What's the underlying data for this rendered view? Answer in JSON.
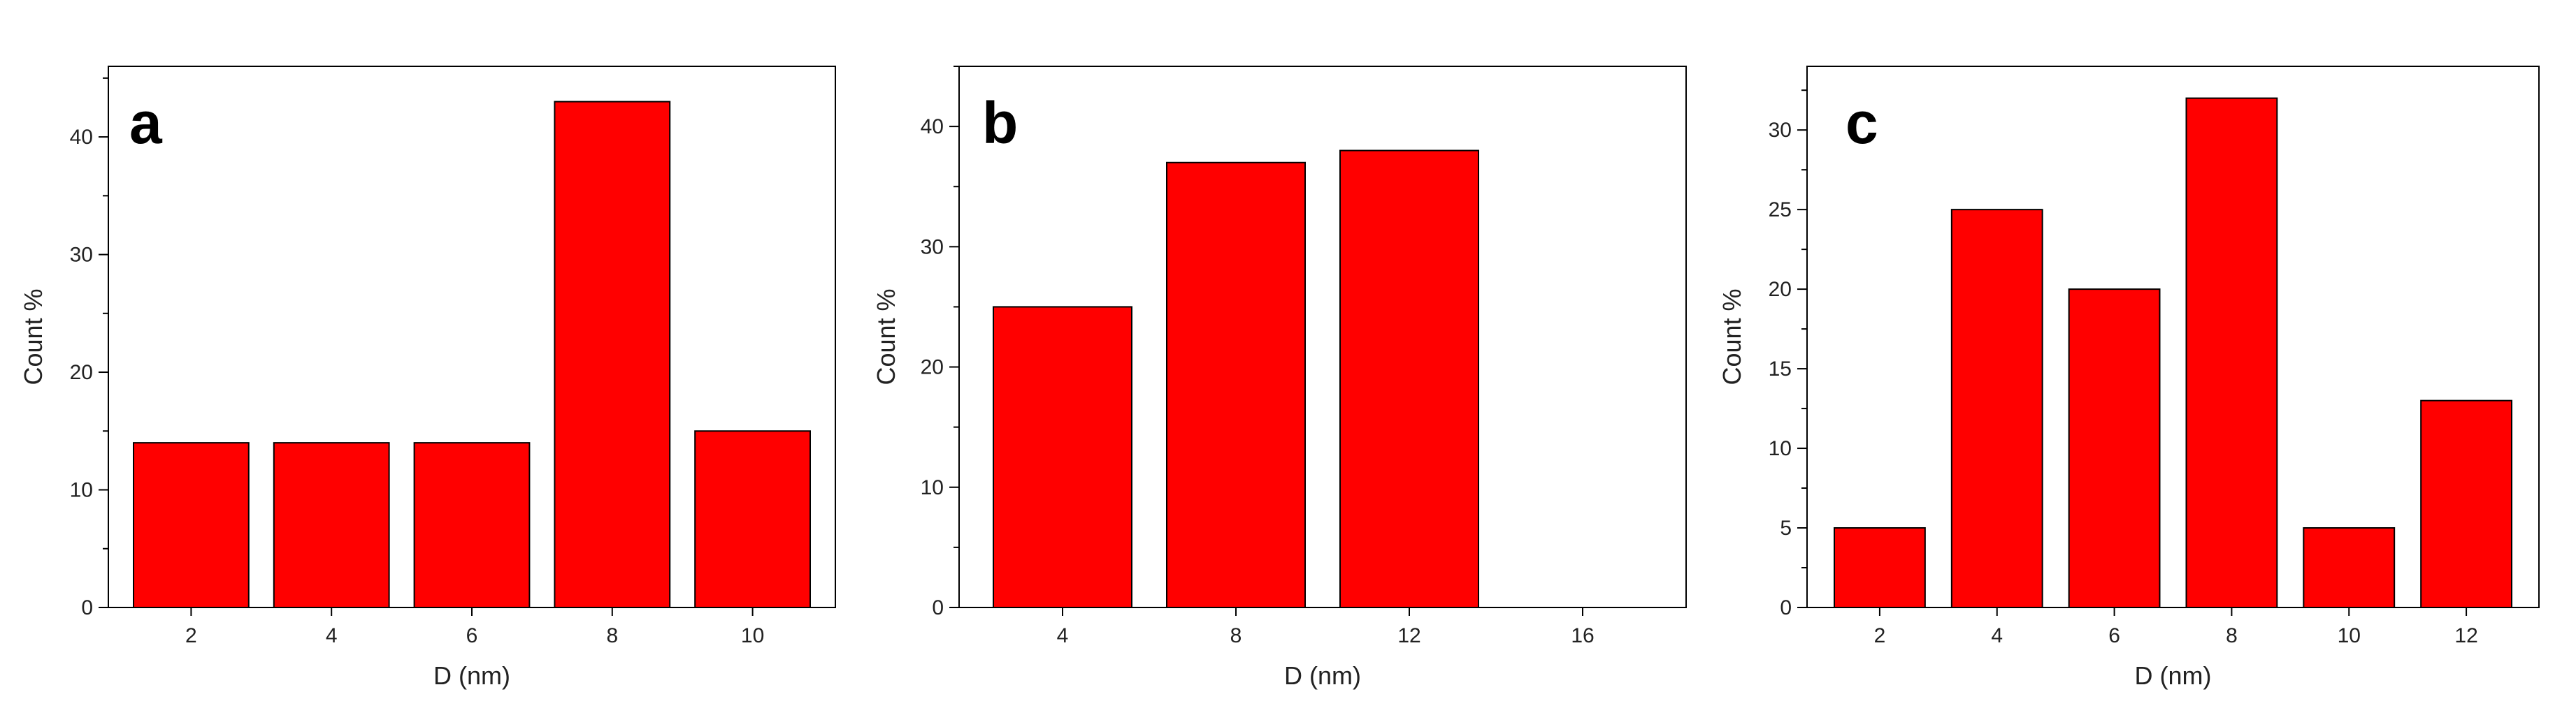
{
  "colors": {
    "bar": "#ff0000",
    "bar_stroke": "#000000",
    "axis": "#000000"
  },
  "chart_data": [
    {
      "type": "bar",
      "panel_label": "a",
      "categories": [
        "2",
        "4",
        "6",
        "8",
        "10"
      ],
      "values": [
        14,
        14,
        14,
        43,
        15
      ],
      "xlabel": "D (nm)",
      "ylabel": "Count %",
      "ylim": [
        0,
        46
      ],
      "yticks": [
        0,
        10,
        20,
        30,
        40
      ],
      "grid": false
    },
    {
      "type": "bar",
      "panel_label": "b",
      "categories": [
        "4",
        "8",
        "12",
        "16"
      ],
      "values": [
        25,
        37,
        38,
        0
      ],
      "xlabel": "D (nm)",
      "ylabel": "Count %",
      "ylim": [
        0,
        45
      ],
      "yticks": [
        0,
        10,
        20,
        30,
        40
      ],
      "grid": false
    },
    {
      "type": "bar",
      "panel_label": "c",
      "categories": [
        "2",
        "4",
        "6",
        "8",
        "10",
        "12"
      ],
      "values": [
        5,
        25,
        20,
        32,
        5,
        13
      ],
      "xlabel": "D (nm)",
      "ylabel": "Count %",
      "ylim": [
        0,
        34
      ],
      "yticks": [
        0,
        5,
        10,
        15,
        20,
        25,
        30
      ],
      "grid": false
    }
  ]
}
